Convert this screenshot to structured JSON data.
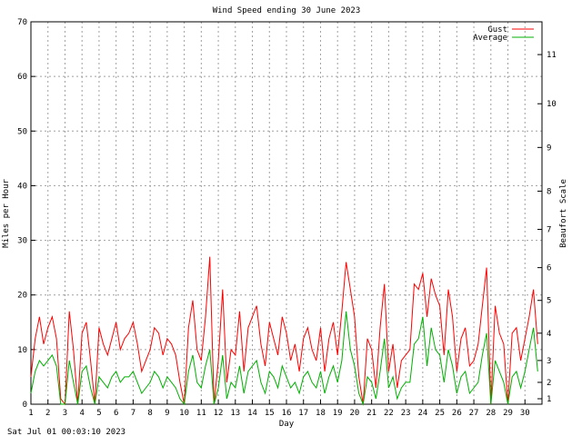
{
  "chart_data": {
    "type": "line",
    "title": "Wind Speed ending 30 June 2023",
    "xlabel": "Day",
    "ylabel": "Miles per Hour",
    "y2label": "Beaufort Scale",
    "xlim": [
      1,
      31
    ],
    "ylim": [
      0,
      70
    ],
    "grid": true,
    "legend_position": "top-right",
    "x_ticks": [
      "1",
      "2",
      "3",
      "4",
      "5",
      "6",
      "7",
      "8",
      "9",
      "10",
      "11",
      "12",
      "13",
      "14",
      "15",
      "16",
      "17",
      "18",
      "19",
      "20",
      "21",
      "22",
      "23",
      "24",
      "25",
      "26",
      "27",
      "28",
      "29",
      "30"
    ],
    "y_ticks": [
      "0",
      "10",
      "20",
      "30",
      "40",
      "50",
      "60",
      "70"
    ],
    "beaufort_ticks": [
      {
        "label": "1",
        "mph": 1
      },
      {
        "label": "2",
        "mph": 4
      },
      {
        "label": "3",
        "mph": 8
      },
      {
        "label": "4",
        "mph": 13
      },
      {
        "label": "5",
        "mph": 19
      },
      {
        "label": "6",
        "mph": 25
      },
      {
        "label": "7",
        "mph": 32
      },
      {
        "label": "8",
        "mph": 39
      },
      {
        "label": "9",
        "mph": 47
      },
      {
        "label": "10",
        "mph": 55
      },
      {
        "label": "11",
        "mph": 64
      }
    ],
    "series": [
      {
        "name": "Gust",
        "color": "#ff0000",
        "x": [
          1.0,
          1.25,
          1.5,
          1.75,
          2.0,
          2.25,
          2.5,
          2.75,
          3.0,
          3.25,
          3.5,
          3.75,
          4.0,
          4.25,
          4.5,
          4.75,
          5.0,
          5.25,
          5.5,
          5.75,
          6.0,
          6.25,
          6.5,
          6.75,
          7.0,
          7.25,
          7.5,
          7.75,
          8.0,
          8.25,
          8.5,
          8.75,
          9.0,
          9.25,
          9.5,
          9.75,
          10.0,
          10.25,
          10.5,
          10.75,
          11.0,
          11.25,
          11.5,
          11.75,
          12.0,
          12.25,
          12.5,
          12.75,
          13.0,
          13.25,
          13.5,
          13.75,
          14.0,
          14.25,
          14.5,
          14.75,
          15.0,
          15.25,
          15.5,
          15.75,
          16.0,
          16.25,
          16.5,
          16.75,
          17.0,
          17.25,
          17.5,
          17.75,
          18.0,
          18.25,
          18.5,
          18.75,
          19.0,
          19.25,
          19.5,
          19.75,
          20.0,
          20.25,
          20.5,
          20.75,
          21.0,
          21.25,
          21.5,
          21.75,
          22.0,
          22.25,
          22.5,
          22.75,
          23.0,
          23.25,
          23.5,
          23.75,
          24.0,
          24.25,
          24.5,
          24.75,
          25.0,
          25.25,
          25.5,
          25.75,
          26.0,
          26.25,
          26.5,
          26.75,
          27.0,
          27.25,
          27.5,
          27.75,
          28.0,
          28.25,
          28.5,
          28.75,
          29.0,
          29.25,
          29.5,
          29.75,
          30.0,
          30.25,
          30.5,
          30.75
        ],
        "values": [
          5,
          12,
          16,
          11,
          14,
          16,
          12,
          1,
          0,
          17,
          10,
          0,
          13,
          15,
          8,
          0,
          14,
          11,
          9,
          12,
          15,
          10,
          12,
          13,
          15,
          11,
          6,
          8,
          10,
          14,
          13,
          9,
          12,
          11,
          9,
          4,
          0,
          14,
          19,
          10,
          8,
          16,
          27,
          0,
          8,
          21,
          4,
          10,
          9,
          17,
          6,
          14,
          16,
          18,
          11,
          7,
          15,
          12,
          9,
          16,
          13,
          8,
          11,
          6,
          12,
          14,
          10,
          8,
          14,
          6,
          12,
          15,
          9,
          17,
          26,
          21,
          16,
          5,
          0,
          12,
          10,
          3,
          14,
          22,
          6,
          11,
          3,
          8,
          9,
          10,
          22,
          21,
          24,
          16,
          23,
          20,
          18,
          9,
          21,
          16,
          6,
          12,
          14,
          7,
          8,
          11,
          18,
          25,
          0,
          18,
          13,
          11,
          0,
          13,
          14,
          8,
          12,
          16,
          21,
          11
        ]
      },
      {
        "name": "Average",
        "color": "#00b000",
        "x": [
          1.0,
          1.25,
          1.5,
          1.75,
          2.0,
          2.25,
          2.5,
          2.75,
          3.0,
          3.25,
          3.5,
          3.75,
          4.0,
          4.25,
          4.5,
          4.75,
          5.0,
          5.25,
          5.5,
          5.75,
          6.0,
          6.25,
          6.5,
          6.75,
          7.0,
          7.25,
          7.5,
          7.75,
          8.0,
          8.25,
          8.5,
          8.75,
          9.0,
          9.25,
          9.5,
          9.75,
          10.0,
          10.25,
          10.5,
          10.75,
          11.0,
          11.25,
          11.5,
          11.75,
          12.0,
          12.25,
          12.5,
          12.75,
          13.0,
          13.25,
          13.5,
          13.75,
          14.0,
          14.25,
          14.5,
          14.75,
          15.0,
          15.25,
          15.5,
          15.75,
          16.0,
          16.25,
          16.5,
          16.75,
          17.0,
          17.25,
          17.5,
          17.75,
          18.0,
          18.25,
          18.5,
          18.75,
          19.0,
          19.25,
          19.5,
          19.75,
          20.0,
          20.25,
          20.5,
          20.75,
          21.0,
          21.25,
          21.5,
          21.75,
          22.0,
          22.25,
          22.5,
          22.75,
          23.0,
          23.25,
          23.5,
          23.75,
          24.0,
          24.25,
          24.5,
          24.75,
          25.0,
          25.25,
          25.5,
          25.75,
          26.0,
          26.25,
          26.5,
          26.75,
          27.0,
          27.25,
          27.5,
          27.75,
          28.0,
          28.25,
          28.5,
          28.75,
          29.0,
          29.25,
          29.5,
          29.75,
          30.0,
          30.25,
          30.5,
          30.75
        ],
        "values": [
          2,
          6,
          8,
          7,
          8,
          9,
          7,
          0,
          0,
          8,
          4,
          0,
          6,
          7,
          3,
          0,
          5,
          4,
          3,
          5,
          6,
          4,
          5,
          5,
          6,
          4,
          2,
          3,
          4,
          6,
          5,
          3,
          5,
          4,
          3,
          1,
          0,
          6,
          9,
          4,
          3,
          7,
          10,
          0,
          3,
          9,
          1,
          4,
          3,
          7,
          2,
          6,
          7,
          8,
          4,
          2,
          6,
          5,
          3,
          7,
          5,
          3,
          4,
          2,
          5,
          6,
          4,
          3,
          6,
          2,
          5,
          7,
          4,
          8,
          17,
          10,
          7,
          2,
          0,
          5,
          4,
          1,
          6,
          12,
          3,
          5,
          1,
          3,
          4,
          4,
          11,
          12,
          16,
          7,
          14,
          10,
          9,
          4,
          10,
          7,
          2,
          5,
          6,
          2,
          3,
          4,
          9,
          13,
          0,
          8,
          6,
          4,
          0,
          5,
          6,
          3,
          6,
          10,
          14,
          6
        ]
      }
    ],
    "footer": "Sat Jul 01 00:03:10 2023"
  }
}
